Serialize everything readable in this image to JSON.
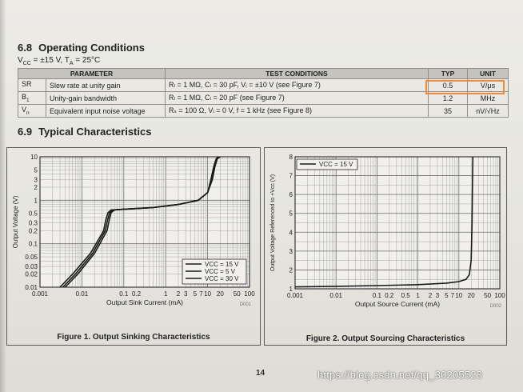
{
  "section_68": {
    "number": "6.8",
    "title": "Operating Conditions",
    "conditions_vcc": "V",
    "conditions_vcc_sub": "CC",
    "conditions_vcc_val": " = ±15 V, T",
    "conditions_ta_sub": "A",
    "conditions_ta_val": " = 25°C"
  },
  "table": {
    "headers": [
      "PARAMETER",
      "TEST CONDITIONS",
      "TYP",
      "UNIT"
    ],
    "rows": [
      {
        "symbol": "SR",
        "symbol_sub": "",
        "parameter": "Slew rate at unity gain",
        "conditions": "Rₗ = 1 MΩ, Cₗ = 30 pF, Vᵢ = ±10 V (see Figure 7)",
        "typ": "0.5",
        "unit": "V/μs"
      },
      {
        "symbol": "B",
        "symbol_sub": "1",
        "parameter": "Unity-gain bandwidth",
        "conditions": "Rₗ = 1 MΩ, Cₗ = 20 pF (see Figure 7)",
        "typ": "1.2",
        "unit": "MHz"
      },
      {
        "symbol": "V",
        "symbol_sub": "n",
        "parameter": "Equivalent input noise voltage",
        "conditions": "Rₛ = 100 Ω, Vᵢ = 0 V, f = 1 kHz (see Figure 8)",
        "typ": "35",
        "unit": "nV/√Hz"
      }
    ]
  },
  "section_69": {
    "number": "6.9",
    "title": "Typical Characteristics"
  },
  "chart_data": [
    {
      "type": "line",
      "title": "Figure 1. Output Sinking Characteristics",
      "xlabel": "Output Sink Current (mA)",
      "ylabel": "Output Voltage (V)",
      "xscale": "log",
      "yscale": "log",
      "xlim": [
        0.001,
        100
      ],
      "ylim": [
        0.01,
        10
      ],
      "x_ticks": [
        "0.001",
        "0.01",
        "0.1",
        "0.2",
        "1",
        "2",
        "3",
        "5",
        "7",
        "10",
        "20",
        "50",
        "100"
      ],
      "y_ticks": [
        "10",
        "5",
        "3",
        "2",
        "1",
        "0.5",
        "0.3",
        "0.2",
        "0.1",
        "0.05",
        "0.03",
        "0.02",
        "0.01"
      ],
      "grid": true,
      "legend_position": "bottom-right",
      "figure_code": "D001",
      "series": [
        {
          "name": "VCC = 15 V",
          "x": [
            0.004,
            0.008,
            0.02,
            0.04,
            0.045,
            0.05,
            0.06,
            0.1,
            0.5,
            2,
            6,
            10,
            13,
            15,
            17,
            20
          ],
          "y": [
            0.01,
            0.02,
            0.06,
            0.2,
            0.35,
            0.52,
            0.6,
            0.62,
            0.68,
            0.8,
            1.0,
            1.5,
            3,
            6,
            9,
            10
          ]
        },
        {
          "name": "VCC = 5 V",
          "x": [
            0.0035,
            0.007,
            0.018,
            0.036,
            0.041,
            0.046,
            0.055,
            0.1,
            0.5,
            2,
            6,
            10,
            12.5,
            14.5,
            16.5,
            19
          ],
          "y": [
            0.01,
            0.02,
            0.06,
            0.2,
            0.35,
            0.52,
            0.6,
            0.62,
            0.68,
            0.8,
            1.0,
            1.5,
            3,
            6,
            9,
            10
          ]
        },
        {
          "name": "VCC = 30 V",
          "x": [
            0.003,
            0.006,
            0.016,
            0.033,
            0.037,
            0.042,
            0.05,
            0.1,
            0.5,
            2,
            6,
            10,
            12,
            14,
            16,
            18
          ],
          "y": [
            0.01,
            0.02,
            0.06,
            0.2,
            0.35,
            0.52,
            0.6,
            0.62,
            0.68,
            0.8,
            1.0,
            1.5,
            3,
            6,
            9,
            10
          ]
        }
      ]
    },
    {
      "type": "line",
      "title": "Figure 2. Output Sourcing Characteristics",
      "xlabel": "Output Source Current (mA)",
      "ylabel": "Output Voltage Referenced to +Vcc (V)",
      "xscale": "log",
      "yscale": "linear",
      "xlim": [
        0.001,
        100
      ],
      "ylim": [
        1,
        8
      ],
      "x_ticks": [
        "0.001",
        "0.01",
        "0.1",
        "0.2",
        "0.5",
        "1",
        "2",
        "3",
        "5",
        "7",
        "10",
        "20",
        "50",
        "100"
      ],
      "y_ticks": [
        "8",
        "7",
        "6",
        "5",
        "4",
        "3",
        "2",
        "1"
      ],
      "grid": true,
      "legend_position": "top-left",
      "figure_code": "D002",
      "series": [
        {
          "name": "VCC = 15 V",
          "x": [
            0.001,
            0.01,
            0.1,
            1,
            5,
            10,
            15,
            18,
            20,
            21,
            21.5,
            22
          ],
          "y": [
            1.1,
            1.13,
            1.17,
            1.22,
            1.3,
            1.38,
            1.5,
            1.75,
            2.5,
            4.5,
            6.5,
            8
          ]
        }
      ]
    }
  ],
  "footer": {
    "page_number": "14",
    "watermark": "https://blog.csdn.net/qq_30205523"
  }
}
